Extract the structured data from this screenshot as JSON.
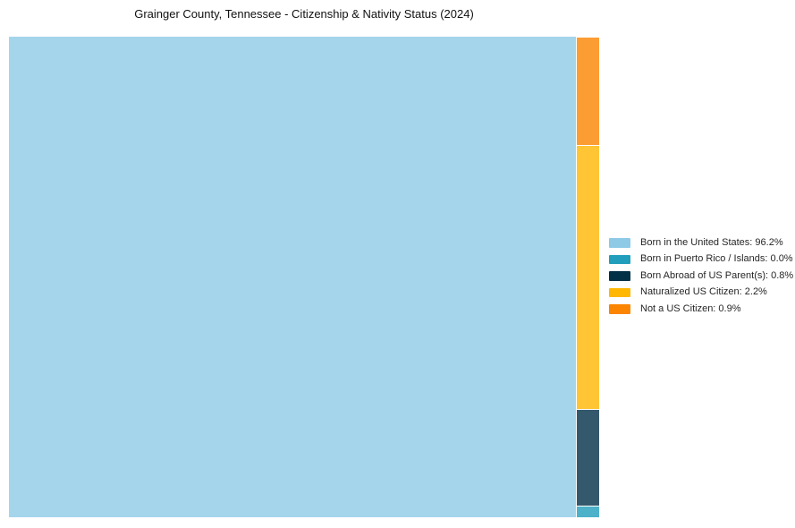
{
  "title": "Grainger County, Tennessee - Citizenship & Nativity Status (2024)",
  "colors": {
    "born_in_us": "#8ECAE6",
    "born_in_pr_islands": "#219EBC",
    "born_abroad_us_parents": "#023047",
    "naturalized_citizen": "#FFB703",
    "not_a_citizen": "#FB8500",
    "background": "#FFFFFF",
    "title_text": "#111111",
    "legend_text": "#262626"
  },
  "legend": {
    "items": [
      {
        "label": "Born in the United States: 96.2%",
        "color": "#8ECAE6",
        "slug": "born-in-the-united-states"
      },
      {
        "label": "Born in Puerto Rico / Islands: 0.0%",
        "color": "#219EBC",
        "slug": "born-in-puerto-rico-islands"
      },
      {
        "label": "Born Abroad of US Parent(s): 0.8%",
        "color": "#023047",
        "slug": "born-abroad-of-us-parents"
      },
      {
        "label": "Naturalized US Citizen: 2.2%",
        "color": "#FFB703",
        "slug": "naturalized-us-citizen"
      },
      {
        "label": "Not a US Citizen: 0.9%",
        "color": "#FB8500",
        "slug": "not-a-us-citizen"
      }
    ]
  },
  "chart_data": {
    "type": "treemap",
    "title": "Grainger County, Tennessee - Citizenship & Nativity Status (2024)",
    "categories": [
      "Born in the United States",
      "Born in Puerto Rico / Islands",
      "Born Abroad of US Parent(s)",
      "Naturalized US Citizen",
      "Not a US Citizen"
    ],
    "values": [
      96.2,
      0.0,
      0.8,
      2.2,
      0.9
    ],
    "unit": "%",
    "colors": [
      "#8ECAE6",
      "#219EBC",
      "#023047",
      "#FFB703",
      "#FB8500"
    ],
    "layout_hint": "largest value fills left area; remaining values stacked in narrow right column, bottom-to-top in legend order",
    "legend_position": "center right",
    "grid": false
  }
}
